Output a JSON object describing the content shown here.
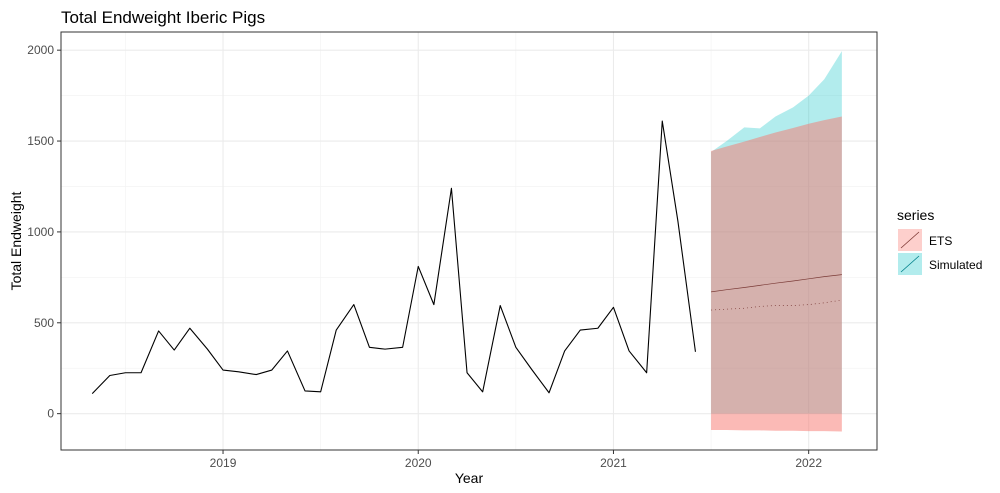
{
  "chart_data": {
    "type": "line",
    "title": "Total Endweight Iberic Pigs",
    "xlabel": "Year",
    "ylabel": "Total Endweight",
    "x_ticks": [
      2019,
      2020,
      2021,
      2022
    ],
    "y_ticks": [
      0,
      500,
      1000,
      1500,
      2000
    ],
    "xlim": [
      2018.17,
      2022.35
    ],
    "ylim": [
      -200,
      2100
    ],
    "grid": true,
    "legend": {
      "title": "series",
      "placement": "right",
      "entries": [
        {
          "name": "ETS",
          "color": "#f8766d"
        },
        {
          "name": "Simulated",
          "color": "#00bfc4"
        }
      ]
    },
    "history": {
      "x": [
        2018.33,
        2018.42,
        2018.5,
        2018.58,
        2018.67,
        2018.75,
        2018.83,
        2018.92,
        2019.0,
        2019.08,
        2019.17,
        2019.25,
        2019.33,
        2019.42,
        2019.5,
        2019.58,
        2019.67,
        2019.75,
        2019.83,
        2019.92,
        2020.0,
        2020.08,
        2020.17,
        2020.25,
        2020.33,
        2020.42,
        2020.5,
        2020.58,
        2020.67,
        2020.75,
        2020.83,
        2020.92,
        2021.0,
        2021.08,
        2021.17,
        2021.25,
        2021.33,
        2021.42
      ],
      "y": [
        110,
        210,
        225,
        225,
        455,
        350,
        470,
        355,
        240,
        230,
        215,
        240,
        345,
        125,
        120,
        460,
        600,
        365,
        355,
        365,
        810,
        600,
        1240,
        225,
        120,
        595,
        365,
        245,
        115,
        345,
        460,
        470,
        585,
        345,
        225,
        1610,
        1060,
        340
      ]
    },
    "forecast": {
      "x": [
        2021.5,
        2021.58,
        2021.67,
        2021.75,
        2021.83,
        2021.92,
        2022.0,
        2022.08,
        2022.17
      ],
      "ets_mean": [
        670,
        682,
        694,
        706,
        718,
        730,
        742,
        754,
        765
      ],
      "ets_lower": [
        -90,
        -90,
        -92,
        -92,
        -94,
        -94,
        -96,
        -96,
        -98
      ],
      "ets_upper": [
        1445,
        1470,
        1497,
        1522,
        1547,
        1572,
        1595,
        1615,
        1635
      ],
      "sim_mean": [
        570,
        575,
        580,
        590,
        595,
        595,
        600,
        610,
        625
      ],
      "sim_lower": [
        0,
        0,
        0,
        0,
        0,
        0,
        0,
        0,
        0
      ],
      "sim_upper": [
        1440,
        1500,
        1575,
        1570,
        1635,
        1685,
        1750,
        1840,
        1995
      ]
    }
  }
}
